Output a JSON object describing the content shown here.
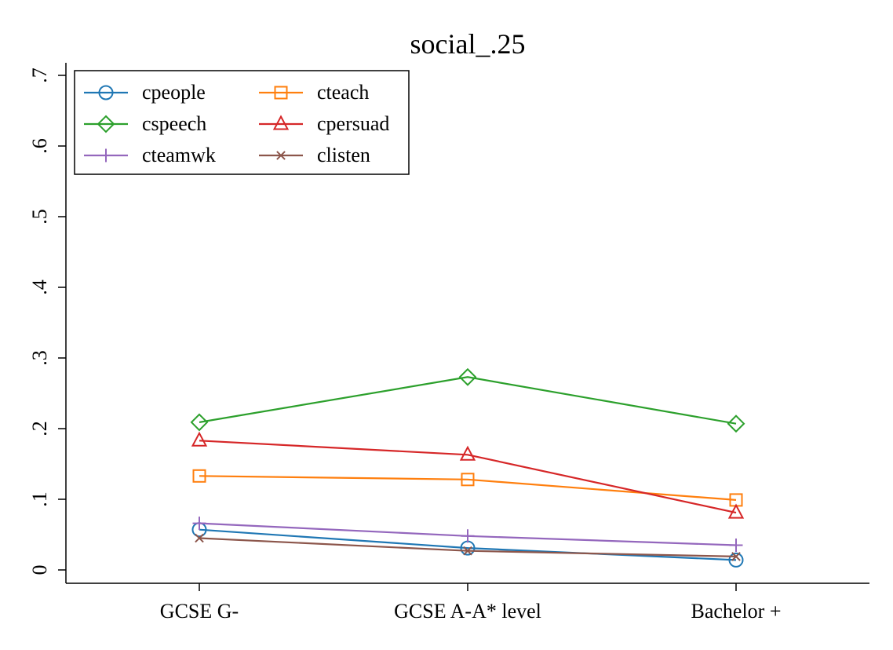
{
  "chart_data": {
    "type": "line",
    "title": "social_.25",
    "xlabel": "",
    "ylabel": "",
    "categories": [
      "GCSE G-",
      "GCSE A-A* level",
      "Bachelor +"
    ],
    "ylim": [
      0,
      0.7
    ],
    "yticks": [
      0,
      0.1,
      0.2,
      0.3,
      0.4,
      0.5,
      0.6,
      0.7
    ],
    "ytick_labels": [
      "0",
      ".1",
      ".2",
      ".3",
      ".4",
      ".5",
      ".6",
      ".7"
    ],
    "grid": false,
    "legend": {
      "placement": "top-left",
      "columns": 2
    },
    "series": [
      {
        "name": "cpeople",
        "values": [
          0.057,
          0.031,
          0.014
        ],
        "color": "#1f77b4",
        "marker": "circle"
      },
      {
        "name": "cteach",
        "values": [
          0.133,
          0.128,
          0.099
        ],
        "color": "#ff7f0e",
        "marker": "square"
      },
      {
        "name": "cspeech",
        "values": [
          0.209,
          0.273,
          0.207
        ],
        "color": "#2ca02c",
        "marker": "diamond"
      },
      {
        "name": "cpersuad",
        "values": [
          0.183,
          0.163,
          0.081
        ],
        "color": "#d62728",
        "marker": "triangle"
      },
      {
        "name": "cteamwk",
        "values": [
          0.066,
          0.048,
          0.035
        ],
        "color": "#9467bd",
        "marker": "plus"
      },
      {
        "name": "clisten",
        "values": [
          0.045,
          0.027,
          0.019
        ],
        "color": "#8c564b",
        "marker": "x"
      }
    ]
  }
}
